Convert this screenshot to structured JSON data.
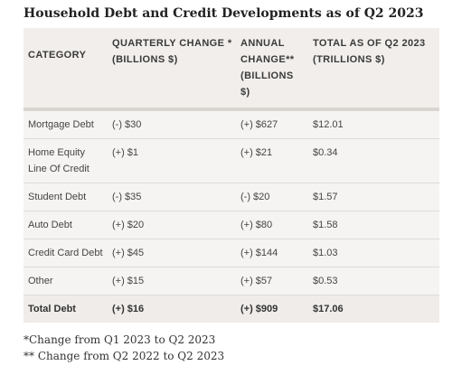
{
  "title": "Household Debt and Credit Developments as of Q2 2023",
  "table": {
    "headers": {
      "category": "CATEGORY",
      "quarterly": "QUARTERLY CHANGE * (BILLIONS $)",
      "annual": "ANNUAL CHANGE** (BILLIONS $)",
      "total": "TOTAL AS OF Q2 2023 (TRILLIONS $)"
    },
    "rows": [
      {
        "category": "Mortgage Debt",
        "quarterly": "(-) $30",
        "annual": "(+) $627",
        "total": "$12.01"
      },
      {
        "category": "Home Equity Line Of Credit",
        "quarterly": "(+) $1",
        "annual": "(+) $21",
        "total": "$0.34"
      },
      {
        "category": "Student Debt",
        "quarterly": "(-) $35",
        "annual": "(-) $20",
        "total": "$1.57"
      },
      {
        "category": "Auto Debt",
        "quarterly": "(+) $20",
        "annual": "(+) $80",
        "total": "$1.58"
      },
      {
        "category": "Credit Card Debt",
        "quarterly": "(+) $45",
        "annual": "(+) $144",
        "total": "$1.03"
      },
      {
        "category": "Other",
        "quarterly": "(+) $15",
        "annual": "(+) $57",
        "total": "$0.53"
      }
    ],
    "total_row": {
      "category": "Total Debt",
      "quarterly": "(+) $16",
      "annual": "(+) $909",
      "total": "$17.06"
    }
  },
  "footnotes": [
    "*Change from Q1 2023 to Q2 2023",
    "** Change from Q2 2022 to Q2 2023"
  ]
}
